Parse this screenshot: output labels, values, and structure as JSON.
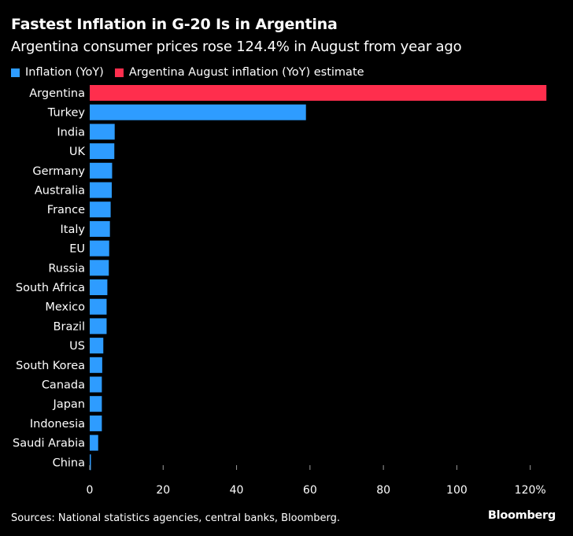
{
  "title": "Fastest Inflation in G-20 Is in Argentina",
  "subtitle": "Argentina consumer prices rose 124.4% in August from year ago",
  "legend": [
    {
      "label": "Inflation (YoY)",
      "color": "#2e9cff"
    },
    {
      "label": "Argentina August inflation (YoY) estimate",
      "color": "#ff2e4d"
    }
  ],
  "source": "Sources: National statistics agencies, central banks, Bloomberg.",
  "brand": "Bloomberg",
  "chart_data": {
    "type": "bar",
    "orientation": "horizontal",
    "categories": [
      "Argentina",
      "Turkey",
      "India",
      "UK",
      "Germany",
      "Australia",
      "France",
      "Italy",
      "EU",
      "Russia",
      "South Africa",
      "Mexico",
      "Brazil",
      "US",
      "South Korea",
      "Canada",
      "Japan",
      "Indonesia",
      "Saudi Arabia",
      "China"
    ],
    "values": [
      124.4,
      58.9,
      6.8,
      6.7,
      6.1,
      6.0,
      5.7,
      5.5,
      5.3,
      5.2,
      4.8,
      4.6,
      4.6,
      3.7,
      3.4,
      3.3,
      3.3,
      3.3,
      2.3,
      0.1
    ],
    "highlight_index": 0,
    "colors": {
      "default": "#2e9cff",
      "highlight": "#ff2e4d"
    },
    "xlim": [
      0,
      125
    ],
    "xticks": [
      0,
      20,
      40,
      60,
      80,
      100,
      120
    ],
    "xtick_labels": [
      "0",
      "20",
      "40",
      "60",
      "80",
      "100",
      "120%"
    ],
    "axis_color": "#9a9a9a",
    "title": "Fastest Inflation in G-20 Is in Argentina",
    "xlabel": "",
    "ylabel": ""
  }
}
